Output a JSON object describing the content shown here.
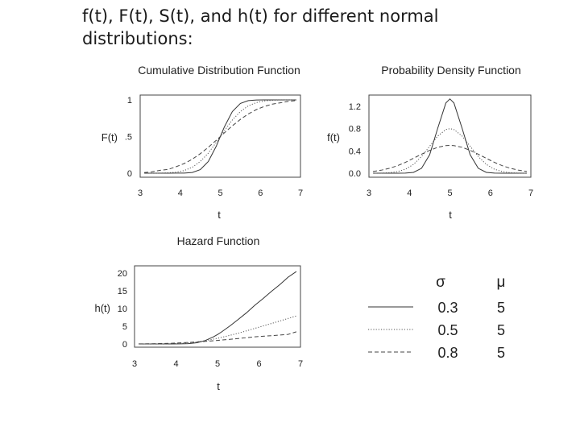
{
  "title_lines": [
    "f(t), F(t), S(t), and h(t) for different normal",
    "distributions:"
  ],
  "chart_data": [
    {
      "type": "line",
      "title": "Cumulative Distribution Function",
      "xlabel": "t",
      "ylabel": "F(t)",
      "xlim": [
        3,
        7
      ],
      "ylim": [
        0,
        1
      ],
      "xticks": [
        "3",
        "4",
        "5",
        "6",
        "7"
      ],
      "yticks": [
        {
          "value": 0,
          "label": "0"
        },
        {
          "value": 0.5,
          "label": ".5"
        },
        {
          "value": 1,
          "label": "1"
        }
      ],
      "x": [
        3.1,
        3.3,
        3.5,
        3.7,
        3.9,
        4.1,
        4.3,
        4.5,
        4.7,
        4.9,
        5.0,
        5.1,
        5.3,
        5.5,
        5.7,
        5.9,
        6.1,
        6.3,
        6.5,
        6.7,
        6.9
      ],
      "series": [
        {
          "sigma": 0.3,
          "style": "solid",
          "values": [
            0.0,
            0.0,
            0.0,
            0.0,
            0.001,
            0.001,
            0.01,
            0.048,
            0.159,
            0.369,
            0.5,
            0.631,
            0.841,
            0.952,
            0.99,
            0.999,
            1.0,
            1.0,
            1.0,
            1.0,
            1.0
          ]
        },
        {
          "sigma": 0.5,
          "style": "dotted",
          "values": [
            0.0,
            0.0,
            0.001,
            0.005,
            0.014,
            0.036,
            0.081,
            0.159,
            0.274,
            0.421,
            0.5,
            0.579,
            0.726,
            0.841,
            0.919,
            0.964,
            0.986,
            0.995,
            0.999,
            1.0,
            1.0
          ]
        },
        {
          "sigma": 0.8,
          "style": "dashed",
          "values": [
            0.009,
            0.02,
            0.04,
            0.052,
            0.089,
            0.132,
            0.191,
            0.266,
            0.354,
            0.45,
            0.5,
            0.55,
            0.646,
            0.734,
            0.809,
            0.868,
            0.911,
            0.943,
            0.96,
            0.98,
            0.991
          ]
        }
      ]
    },
    {
      "type": "line",
      "title": "Probability Density Function",
      "xlabel": "t",
      "ylabel": "f(t)",
      "xlim": [
        3,
        7
      ],
      "ylim": [
        0,
        1.4
      ],
      "xticks": [
        "3",
        "4",
        "5",
        "6",
        "7"
      ],
      "yticks": [
        {
          "value": 0,
          "label": "0.0"
        },
        {
          "value": 0.4,
          "label": "0.4"
        },
        {
          "value": 0.8,
          "label": "0.8"
        },
        {
          "value": 1.2,
          "label": "1.2"
        }
      ],
      "x": [
        3.1,
        3.3,
        3.5,
        3.7,
        3.9,
        4.1,
        4.3,
        4.5,
        4.7,
        4.9,
        5.0,
        5.1,
        5.3,
        5.5,
        5.7,
        5.9,
        6.1,
        6.3,
        6.5,
        6.7,
        6.9
      ],
      "series": [
        {
          "sigma": 0.3,
          "style": "solid",
          "values": [
            0.0,
            0.0,
            0.0,
            0.0,
            0.002,
            0.015,
            0.088,
            0.332,
            0.807,
            1.258,
            1.33,
            1.258,
            0.807,
            0.332,
            0.088,
            0.015,
            0.002,
            0.0,
            0.0,
            0.0,
            0.0
          ]
        },
        {
          "sigma": 0.5,
          "style": "dotted",
          "values": [
            0.0,
            0.002,
            0.009,
            0.027,
            0.071,
            0.158,
            0.299,
            0.484,
            0.666,
            0.782,
            0.798,
            0.782,
            0.666,
            0.484,
            0.299,
            0.158,
            0.071,
            0.027,
            0.009,
            0.002,
            0.0
          ]
        },
        {
          "sigma": 0.8,
          "style": "dashed",
          "values": [
            0.031,
            0.054,
            0.086,
            0.133,
            0.194,
            0.267,
            0.341,
            0.409,
            0.465,
            0.494,
            0.499,
            0.494,
            0.465,
            0.409,
            0.341,
            0.267,
            0.194,
            0.133,
            0.086,
            0.054,
            0.031
          ]
        }
      ]
    },
    {
      "type": "line",
      "title": "Hazard Function",
      "xlabel": "t",
      "ylabel": "h(t)",
      "xlim": [
        3,
        7
      ],
      "ylim": [
        0,
        22
      ],
      "xticks": [
        "3",
        "4",
        "5",
        "6",
        "7"
      ],
      "yticks": [
        {
          "value": 0,
          "label": "0"
        },
        {
          "value": 5,
          "label": "5"
        },
        {
          "value": 10,
          "label": "10"
        },
        {
          "value": 15,
          "label": "15"
        },
        {
          "value": 20,
          "label": "20"
        }
      ],
      "x": [
        3.1,
        3.3,
        3.5,
        3.7,
        3.9,
        4.1,
        4.3,
        4.5,
        4.7,
        4.9,
        5.0,
        5.1,
        5.3,
        5.5,
        5.7,
        5.9,
        6.1,
        6.3,
        6.5,
        6.7,
        6.9
      ],
      "series": [
        {
          "sigma": 0.3,
          "style": "solid",
          "values": [
            0.0,
            0.0,
            0.0,
            0.0,
            0.002,
            0.015,
            0.089,
            0.35,
            0.96,
            1.99,
            2.66,
            3.41,
            5.07,
            6.92,
            8.8,
            10.9,
            12.8,
            14.8,
            16.7,
            18.8,
            20.4
          ]
        },
        {
          "sigma": 0.5,
          "style": "dotted",
          "values": [
            0.0,
            0.002,
            0.009,
            0.027,
            0.072,
            0.164,
            0.325,
            0.576,
            0.917,
            1.35,
            1.6,
            1.86,
            2.43,
            3.05,
            3.69,
            4.39,
            5.07,
            5.76,
            6.47,
            7.18,
            7.89
          ]
        },
        {
          "sigma": 0.8,
          "style": "dashed",
          "values": [
            0.031,
            0.055,
            0.09,
            0.14,
            0.213,
            0.308,
            0.422,
            0.557,
            0.72,
            0.898,
            0.998,
            1.1,
            1.31,
            1.54,
            1.78,
            2.02,
            2.18,
            2.34,
            2.52,
            2.7,
            3.43
          ]
        }
      ]
    }
  ],
  "legend": {
    "sigma_header": "σ",
    "mu_header": "μ",
    "rows": [
      {
        "style": "solid",
        "sigma": "0.3",
        "mu": "5"
      },
      {
        "style": "dotted",
        "sigma": "0.5",
        "mu": "5"
      },
      {
        "style": "dashed",
        "sigma": "0.8",
        "mu": "5"
      }
    ]
  }
}
